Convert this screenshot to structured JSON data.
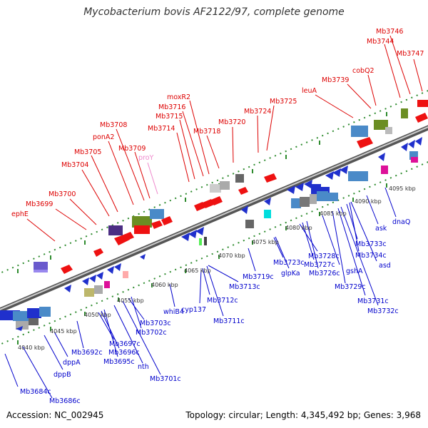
{
  "title": "Mycobacterium bovis AF2122/97, complete genome",
  "footer": {
    "accession": "Accession: NC_002945",
    "summary": "Topology: circular; Length: 4,345,492 bp; Genes: 3,968"
  },
  "ticks": [
    "4040 kbp",
    "4045 kbp",
    "4050 kbp",
    "4055 kbp",
    "4060 kbp",
    "4065 kbp",
    "4070 kbp",
    "4075 kbp",
    "4080 kbp",
    "4085 kbp",
    "4090 kbp",
    "4095 kbp"
  ],
  "top_labels": [
    {
      "text": "ephE",
      "color": "#dd0000"
    },
    {
      "text": "Mb3699",
      "color": "#dd0000"
    },
    {
      "text": "Mb3700",
      "color": "#dd0000"
    },
    {
      "text": "Mb3704",
      "color": "#dd0000"
    },
    {
      "text": "Mb3705",
      "color": "#dd0000"
    },
    {
      "text": "ponA2",
      "color": "#dd0000"
    },
    {
      "text": "Mb3708",
      "color": "#dd0000"
    },
    {
      "text": "Mb3709",
      "color": "#dd0000"
    },
    {
      "text": "proY",
      "color": "#ee88cc"
    },
    {
      "text": "Mb3714",
      "color": "#dd0000"
    },
    {
      "text": "Mb3715",
      "color": "#dd0000"
    },
    {
      "text": "Mb3716",
      "color": "#dd0000"
    },
    {
      "text": "moxR2",
      "color": "#dd0000"
    },
    {
      "text": "Mb3718",
      "color": "#dd0000"
    },
    {
      "text": "Mb3720",
      "color": "#dd0000"
    },
    {
      "text": "Mb3724",
      "color": "#dd0000"
    },
    {
      "text": "Mb3725",
      "color": "#dd0000"
    },
    {
      "text": "leuA",
      "color": "#dd0000"
    },
    {
      "text": "Mb3739",
      "color": "#dd0000"
    },
    {
      "text": "cobQ2",
      "color": "#dd0000"
    },
    {
      "text": "Mb3744",
      "color": "#dd0000"
    },
    {
      "text": "Mb3746",
      "color": "#dd0000"
    },
    {
      "text": "Mb3747",
      "color": "#dd0000"
    }
  ],
  "bottom_labels": [
    {
      "text": "Mb3684c"
    },
    {
      "text": "Mb3686c"
    },
    {
      "text": "dppB"
    },
    {
      "text": "dppA"
    },
    {
      "text": "Mb3692c"
    },
    {
      "text": "Mb3697c"
    },
    {
      "text": "Mb3696c"
    },
    {
      "text": "Mb3695c"
    },
    {
      "text": "nth"
    },
    {
      "text": "Mb3703c"
    },
    {
      "text": "Mb3702c"
    },
    {
      "text": "Mb3701c"
    },
    {
      "text": "whiB4"
    },
    {
      "text": "cyp137"
    },
    {
      "text": "Mb3712c"
    },
    {
      "text": "Mb3711c"
    },
    {
      "text": "Mb3713c"
    },
    {
      "text": "Mb3719c"
    },
    {
      "text": "Mb3723c"
    },
    {
      "text": "glpKa"
    },
    {
      "text": "Mb3728c"
    },
    {
      "text": "Mb3727c"
    },
    {
      "text": "Mb3726c"
    },
    {
      "text": "gshA"
    },
    {
      "text": "Mb3729c"
    },
    {
      "text": "Mb3733c"
    },
    {
      "text": "Mb3734c"
    },
    {
      "text": "asd"
    },
    {
      "text": "Mb3731c"
    },
    {
      "text": "Mb3732c"
    },
    {
      "text": "ask"
    },
    {
      "text": "dnaQ"
    }
  ]
}
